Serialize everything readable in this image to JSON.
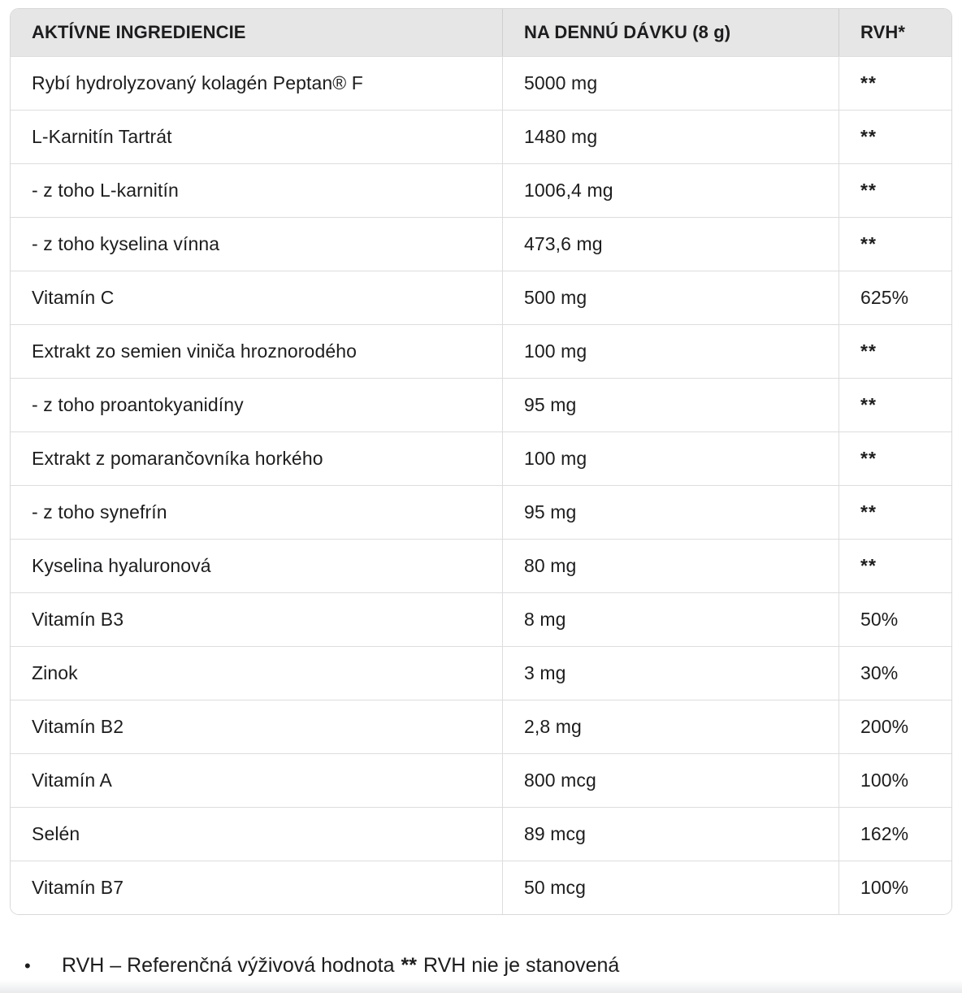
{
  "table": {
    "headers": {
      "ingredient": "AKTÍVNE INGREDIENCIE",
      "per_dose": "NA DENNÚ DÁVKU (8 g)",
      "rvh": "RVH*"
    },
    "rows": [
      {
        "name": "Rybí hydrolyzovaný kolagén Peptan® F",
        "amount": "5000 mg",
        "rvh": "**"
      },
      {
        "name": "L-Karnitín Tartrát",
        "amount": "1480 mg",
        "rvh": "**"
      },
      {
        "name": "- z toho L-karnitín",
        "amount": "1006,4 mg",
        "rvh": "**"
      },
      {
        "name": "- z toho kyselina vínna",
        "amount": "473,6 mg",
        "rvh": "**"
      },
      {
        "name": "Vitamín C",
        "amount": "500 mg",
        "rvh": "625%"
      },
      {
        "name": "Extrakt zo semien viniča hroznorodého",
        "amount": "100 mg",
        "rvh": "**"
      },
      {
        "name": "- z toho proantokyanidíny",
        "amount": "95 mg",
        "rvh": "**"
      },
      {
        "name": "Extrakt z pomarančovníka horkého",
        "amount": "100 mg",
        "rvh": "**"
      },
      {
        "name": "- z toho synefrín",
        "amount": "95 mg",
        "rvh": "**"
      },
      {
        "name": "Kyselina hyaluronová",
        "amount": "80 mg",
        "rvh": "**"
      },
      {
        "name": "Vitamín B3",
        "amount": "8 mg",
        "rvh": "50%"
      },
      {
        "name": "Zinok",
        "amount": "3 mg",
        "rvh": "30%"
      },
      {
        "name": "Vitamín B2",
        "amount": "2,8 mg",
        "rvh": "200%"
      },
      {
        "name": "Vitamín A",
        "amount": "800 mcg",
        "rvh": "100%"
      },
      {
        "name": "Selén",
        "amount": "89 mcg",
        "rvh": "162%"
      },
      {
        "name": "Vitamín B7",
        "amount": "50 mcg",
        "rvh": "100%"
      }
    ]
  },
  "footnote": {
    "bullet": "•",
    "text_before": "RVH – Referenčná výživová hodnota",
    "asterisks": "**",
    "text_after": "RVH nie je stanovená"
  },
  "colors": {
    "header_bg": "#e6e6e7",
    "border": "#d8d8da",
    "row_divider": "#dddddf",
    "text": "#1d1d1f",
    "page_bg": "#ffffff",
    "bottom_band": "#e9eaec"
  }
}
